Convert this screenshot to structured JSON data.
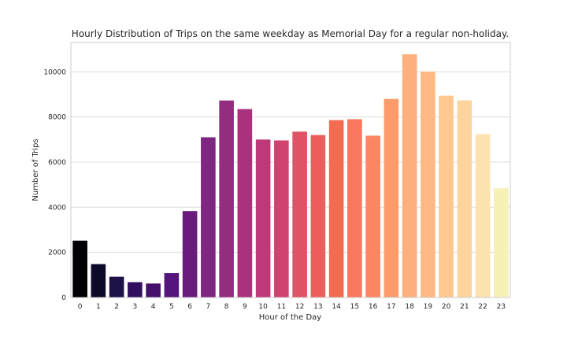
{
  "chart_data": {
    "type": "bar",
    "title": "Hourly Distribution of Trips on the same weekday as Memorial Day for a regular non-holiday.",
    "xlabel": "Hour of the Day",
    "ylabel": "Number of Trips",
    "categories": [
      "0",
      "1",
      "2",
      "3",
      "4",
      "5",
      "6",
      "7",
      "8",
      "9",
      "10",
      "11",
      "12",
      "13",
      "14",
      "15",
      "16",
      "17",
      "18",
      "19",
      "20",
      "21",
      "22",
      "23"
    ],
    "values": [
      2520,
      1480,
      920,
      680,
      620,
      1080,
      3830,
      7100,
      8730,
      8350,
      7000,
      6960,
      7350,
      7200,
      7860,
      7900,
      7170,
      8800,
      10780,
      10010,
      8940,
      8740,
      7240,
      4840
    ],
    "ylim": [
      0,
      11300
    ],
    "yticks": [
      0,
      2000,
      4000,
      6000,
      8000,
      10000
    ],
    "grid": "horizontal",
    "legend": "none",
    "colors": [
      "#000004",
      "#0d0a29",
      "#1d1147",
      "#320e5f",
      "#45106b",
      "#56147d",
      "#6a1b7d",
      "#7f2582",
      "#942c80",
      "#a8327d",
      "#bd3977",
      "#d1426f",
      "#e05265",
      "#eb5e5b",
      "#f36b51",
      "#f8775e",
      "#fb8761",
      "#fd9b6b",
      "#fdb07c",
      "#feb983",
      "#fec88e",
      "#fdd49e",
      "#fce3b0",
      "#f6f2b6"
    ]
  }
}
